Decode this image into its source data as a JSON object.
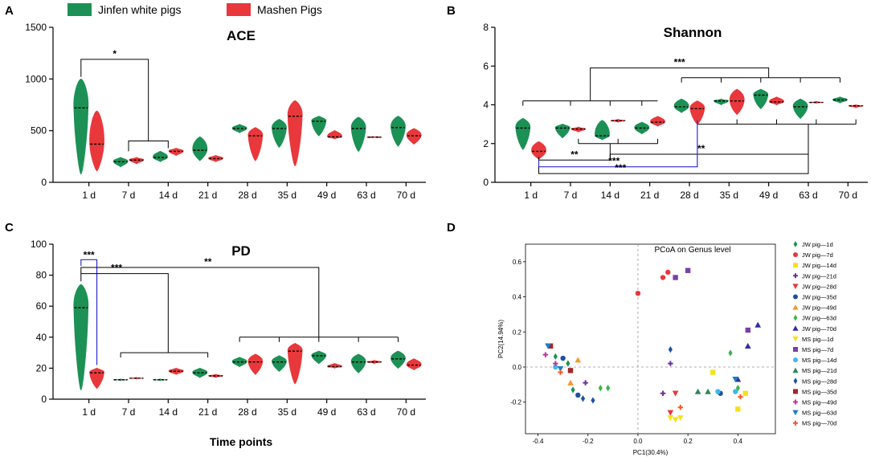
{
  "colors": {
    "jw": "#1c9155",
    "ms": "#e8383b",
    "blue": "#2b2bd6"
  },
  "legend": {
    "jw_label": "Jinfen white pigs",
    "ms_label": "Mashen Pigs"
  },
  "x_axis_title": "Time points",
  "chart_data": [
    {
      "panel": "A",
      "type": "violin",
      "title": "ACE",
      "categories": [
        "1 d",
        "7 d",
        "14 d",
        "21 d",
        "28 d",
        "35 d",
        "49 d",
        "63 d",
        "70 d"
      ],
      "ylim": [
        0,
        1500
      ],
      "yticks": [
        0,
        500,
        1000,
        1500
      ],
      "series": [
        {
          "name": "Jinfen white pigs",
          "color_key": "jw",
          "min": [
            80,
            150,
            200,
            210,
            480,
            340,
            450,
            300,
            350
          ],
          "max": [
            1000,
            240,
            300,
            440,
            560,
            610,
            640,
            630,
            640
          ],
          "median": [
            720,
            200,
            240,
            310,
            520,
            520,
            590,
            520,
            530
          ]
        },
        {
          "name": "Mashen Pigs",
          "color_key": "ms",
          "min": [
            110,
            180,
            260,
            200,
            210,
            160,
            420,
            435,
            370
          ],
          "max": [
            690,
            240,
            330,
            260,
            530,
            790,
            500,
            440,
            520
          ],
          "median": [
            370,
            215,
            300,
            230,
            450,
            640,
            440,
            438,
            450
          ]
        }
      ],
      "annotations": [
        {
          "label": "*",
          "level": 1190,
          "from": [
            "1 d"
          ],
          "to": [
            "7 d",
            "14 d"
          ],
          "sub_level": 400,
          "color": "black"
        }
      ]
    },
    {
      "panel": "B",
      "type": "violin",
      "title": "Shannon",
      "categories": [
        "1 d",
        "7 d",
        "14 d",
        "21 d",
        "28 d",
        "35 d",
        "49 d",
        "63 d",
        "70 d"
      ],
      "ylim": [
        0,
        8
      ],
      "yticks": [
        0,
        2,
        4,
        6,
        8
      ],
      "series": [
        {
          "name": "Jinfen white pigs",
          "color_key": "jw",
          "min": [
            1.7,
            2.3,
            2.2,
            2.5,
            3.6,
            4.0,
            3.8,
            3.3,
            4.1
          ],
          "max": [
            3.3,
            3.0,
            3.2,
            3.1,
            4.3,
            4.3,
            4.8,
            4.3,
            4.4
          ],
          "median": [
            2.8,
            2.8,
            2.4,
            2.8,
            3.9,
            4.2,
            4.5,
            3.9,
            4.25
          ]
        },
        {
          "name": "Mashen Pigs",
          "color_key": "ms",
          "min": [
            1.2,
            2.6,
            3.1,
            2.9,
            3.0,
            3.5,
            4.0,
            4.08,
            3.85
          ],
          "max": [
            2.1,
            2.85,
            3.25,
            3.4,
            4.2,
            4.8,
            4.4,
            4.18,
            4.0
          ],
          "median": [
            1.6,
            2.75,
            3.18,
            3.1,
            3.8,
            4.2,
            4.15,
            4.12,
            3.95
          ]
        }
      ],
      "brackets": [
        {
          "label": "***",
          "y": 5.9,
          "drop_left": 5.2,
          "drop_right": 5.4,
          "color": "black",
          "groups": [
            {
              "y": 5.2,
              "ticks": [
                "1 d",
                "7 d",
                "14 d",
                "21 d"
              ],
              "t_y": 4.2,
              "inner_y": 4.6,
              "inner_ticks": [
                "1 d",
                "7 d",
                "14 d",
                "21 d"
              ]
            },
            {
              "y": 5.4,
              "ticks": [
                "28 d",
                "35 d",
                "49 d",
                "63 d",
                "70 d"
              ],
              "t_y": 5.4
            }
          ]
        },
        {
          "label": "**",
          "y": 1.15,
          "from": "1 d",
          "to": "14 d",
          "color": "black"
        },
        {
          "label": "**",
          "y": 1.45,
          "from": "14 d",
          "to": "63 d",
          "color": "black"
        },
        {
          "label": "***",
          "y": 0.8,
          "from": "1 d",
          "to": "28 d",
          "color": "blue"
        },
        {
          "label": "***",
          "y": 0.45,
          "from": "1 d",
          "to": "63 d",
          "color": "black"
        }
      ]
    },
    {
      "panel": "C",
      "type": "violin",
      "title": "PD",
      "categories": [
        "1 d",
        "7 d",
        "14 d",
        "21 d",
        "28 d",
        "35 d",
        "49 d",
        "63 d",
        "70 d"
      ],
      "ylim": [
        0,
        100
      ],
      "yticks": [
        0,
        20,
        40,
        60,
        80,
        100
      ],
      "series": [
        {
          "name": "Jinfen white pigs",
          "color_key": "jw",
          "min": [
            6,
            12,
            12,
            14,
            21,
            18,
            23,
            17,
            20
          ],
          "max": [
            74,
            13,
            13,
            20,
            27,
            28,
            31,
            29,
            31
          ],
          "median": [
            59,
            12.5,
            12.5,
            17,
            24,
            24,
            28,
            24,
            26
          ]
        },
        {
          "name": "Mashen Pigs",
          "color_key": "ms",
          "min": [
            7,
            13,
            16,
            14,
            16,
            10,
            20,
            23,
            19
          ],
          "max": [
            20,
            14,
            20,
            16,
            29,
            36,
            23,
            25,
            26
          ],
          "median": [
            17,
            13.5,
            18,
            15,
            24,
            31,
            21,
            24,
            22
          ]
        }
      ],
      "annotations": [
        {
          "label": "***",
          "y": 90,
          "from": "1 d",
          "to": "1 d+",
          "color": "blue"
        },
        {
          "label": "***",
          "y": 81,
          "from": "1 d",
          "to_group": [
            "7 d",
            "14 d",
            "21 d"
          ],
          "color": "black"
        },
        {
          "label": "**",
          "y": 85,
          "from": "1 d",
          "to_group": [
            "28 d",
            "35 d",
            "49 d",
            "63 d",
            "70 d"
          ],
          "color": "black"
        }
      ]
    },
    {
      "panel": "D",
      "type": "scatter",
      "title": "PCoA on Genus level",
      "xlabel": "PC1(30.4%)",
      "ylabel": "PC2(14.94%)",
      "xlim": [
        -0.45,
        0.55
      ],
      "ylim": [
        -0.38,
        0.7
      ],
      "xticks": [
        -0.4,
        -0.2,
        0.0,
        0.2,
        0.4
      ],
      "yticks": [
        -0.2,
        0.0,
        0.2,
        0.4,
        0.6
      ],
      "legend": [
        {
          "label": "JW pig—1d",
          "color": "#1c9155",
          "shape": "diamond"
        },
        {
          "label": "JW pig—7d",
          "color": "#e8383b",
          "shape": "circle"
        },
        {
          "label": "JW pig—14d",
          "color": "#f5e21b",
          "shape": "square"
        },
        {
          "label": "JW pig—21d",
          "color": "#6b2fa0",
          "shape": "plus"
        },
        {
          "label": "JW pig—28d",
          "color": "#e8383b",
          "shape": "tri-down"
        },
        {
          "label": "JW pig—35d",
          "color": "#1f4fa3",
          "shape": "circle"
        },
        {
          "label": "JW pig—49d",
          "color": "#f39a2b",
          "shape": "tri-up"
        },
        {
          "label": "JW pig—63d",
          "color": "#3cb44b",
          "shape": "diamond"
        },
        {
          "label": "JW pig—70d",
          "color": "#2e2e9e",
          "shape": "tri-up"
        },
        {
          "label": "MS pig—1d",
          "color": "#f5e21b",
          "shape": "tri-down"
        },
        {
          "label": "MS pig—7d",
          "color": "#7b3fa8",
          "shape": "square"
        },
        {
          "label": "MS pig—14d",
          "color": "#3fb8e8",
          "shape": "circle"
        },
        {
          "label": "MS pig—21d",
          "color": "#2a8a5a",
          "shape": "tri-up"
        },
        {
          "label": "MS pig—28d",
          "color": "#1f4fa3",
          "shape": "diamond"
        },
        {
          "label": "MS pig—35d",
          "color": "#a3262a",
          "shape": "square"
        },
        {
          "label": "MS pig—49d",
          "color": "#c1359c",
          "shape": "plus"
        },
        {
          "label": "MS pig—63d",
          "color": "#1f7fc4",
          "shape": "tri-down"
        },
        {
          "label": "MS pig—70d",
          "color": "#f05a28",
          "shape": "plus"
        }
      ],
      "points": [
        {
          "g": 0,
          "pts": [
            [
              -0.33,
              0.06
            ],
            [
              -0.26,
              -0.13
            ],
            [
              -0.28,
              0.02
            ]
          ]
        },
        {
          "g": 1,
          "pts": [
            [
              0.0,
              0.42
            ],
            [
              0.1,
              0.51
            ],
            [
              0.12,
              0.54
            ]
          ]
        },
        {
          "g": 2,
          "pts": [
            [
              0.3,
              -0.03
            ],
            [
              0.4,
              -0.24
            ],
            [
              0.43,
              -0.15
            ]
          ]
        },
        {
          "g": 3,
          "pts": [
            [
              -0.21,
              -0.09
            ],
            [
              0.13,
              0.02
            ],
            [
              0.1,
              -0.15
            ]
          ]
        },
        {
          "g": 4,
          "pts": [
            [
              0.15,
              -0.15
            ],
            [
              0.13,
              -0.26
            ]
          ]
        },
        {
          "g": 5,
          "pts": [
            [
              -0.3,
              0.05
            ],
            [
              -0.24,
              -0.16
            ],
            [
              0.33,
              -0.15
            ]
          ]
        },
        {
          "g": 6,
          "pts": [
            [
              -0.35,
              0.12
            ],
            [
              -0.27,
              -0.09
            ],
            [
              -0.24,
              0.04
            ]
          ]
        },
        {
          "g": 7,
          "pts": [
            [
              -0.15,
              -0.12
            ],
            [
              -0.12,
              -0.12
            ],
            [
              0.37,
              0.08
            ],
            [
              0.4,
              -0.12
            ]
          ]
        },
        {
          "g": 8,
          "pts": [
            [
              0.44,
              0.12
            ],
            [
              0.48,
              0.24
            ],
            [
              0.4,
              -0.07
            ]
          ]
        },
        {
          "g": 9,
          "pts": [
            [
              0.13,
              -0.29
            ],
            [
              0.15,
              -0.3
            ],
            [
              0.17,
              -0.29
            ]
          ]
        },
        {
          "g": 10,
          "pts": [
            [
              0.15,
              0.51
            ],
            [
              0.2,
              0.55
            ],
            [
              0.44,
              0.21
            ]
          ]
        },
        {
          "g": 11,
          "pts": [
            [
              -0.33,
              0.0
            ],
            [
              0.32,
              -0.14
            ],
            [
              0.39,
              -0.14
            ]
          ]
        },
        {
          "g": 12,
          "pts": [
            [
              0.24,
              -0.14
            ],
            [
              0.28,
              -0.14
            ]
          ]
        },
        {
          "g": 13,
          "pts": [
            [
              -0.22,
              -0.18
            ],
            [
              -0.18,
              -0.19
            ],
            [
              0.13,
              0.1
            ]
          ]
        },
        {
          "g": 14,
          "pts": [
            [
              -0.27,
              -0.02
            ],
            [
              -0.35,
              0.12
            ]
          ]
        },
        {
          "g": 15,
          "pts": [
            [
              -0.37,
              0.07
            ],
            [
              -0.33,
              0.02
            ]
          ]
        },
        {
          "g": 16,
          "pts": [
            [
              -0.31,
              -0.01
            ],
            [
              -0.36,
              0.12
            ],
            [
              0.39,
              -0.07
            ]
          ]
        },
        {
          "g": 17,
          "pts": [
            [
              -0.31,
              -0.03
            ],
            [
              0.41,
              -0.17
            ],
            [
              0.17,
              -0.23
            ]
          ]
        }
      ]
    }
  ]
}
